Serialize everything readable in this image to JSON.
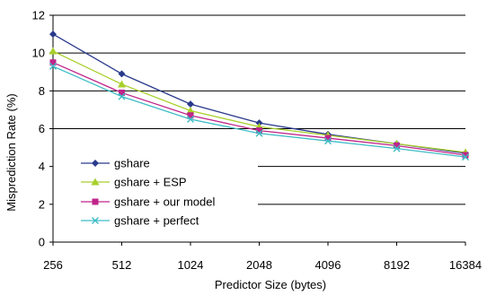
{
  "chart_data": {
    "type": "line",
    "xlabel": "Predictor Size (bytes)",
    "ylabel": "Misprediction Rate (%)",
    "categories": [
      "256",
      "512",
      "1024",
      "2048",
      "4096",
      "8192",
      "16384"
    ],
    "ylim": [
      0,
      12
    ],
    "yticks": [
      0,
      2,
      4,
      6,
      8,
      10,
      12
    ],
    "grid": "horizontal",
    "legend_position": "left",
    "series": [
      {
        "name": "gshare",
        "values": [
          11.0,
          8.9,
          7.3,
          6.3,
          5.7,
          5.2,
          4.7
        ],
        "color": "#2a3a8c",
        "marker": "diamond"
      },
      {
        "name": "gshare + ESP",
        "values": [
          10.1,
          8.35,
          6.95,
          6.1,
          5.65,
          5.2,
          4.75
        ],
        "color": "#a8cf2a",
        "marker": "triangle"
      },
      {
        "name": "gshare + our model",
        "values": [
          9.5,
          7.9,
          6.7,
          5.9,
          5.5,
          5.1,
          4.6
        ],
        "color": "#c0248a",
        "marker": "square"
      },
      {
        "name": "gshare + perfect",
        "values": [
          9.3,
          7.7,
          6.5,
          5.75,
          5.35,
          4.95,
          4.5
        ],
        "color": "#3dbcc6",
        "marker": "x"
      }
    ]
  }
}
